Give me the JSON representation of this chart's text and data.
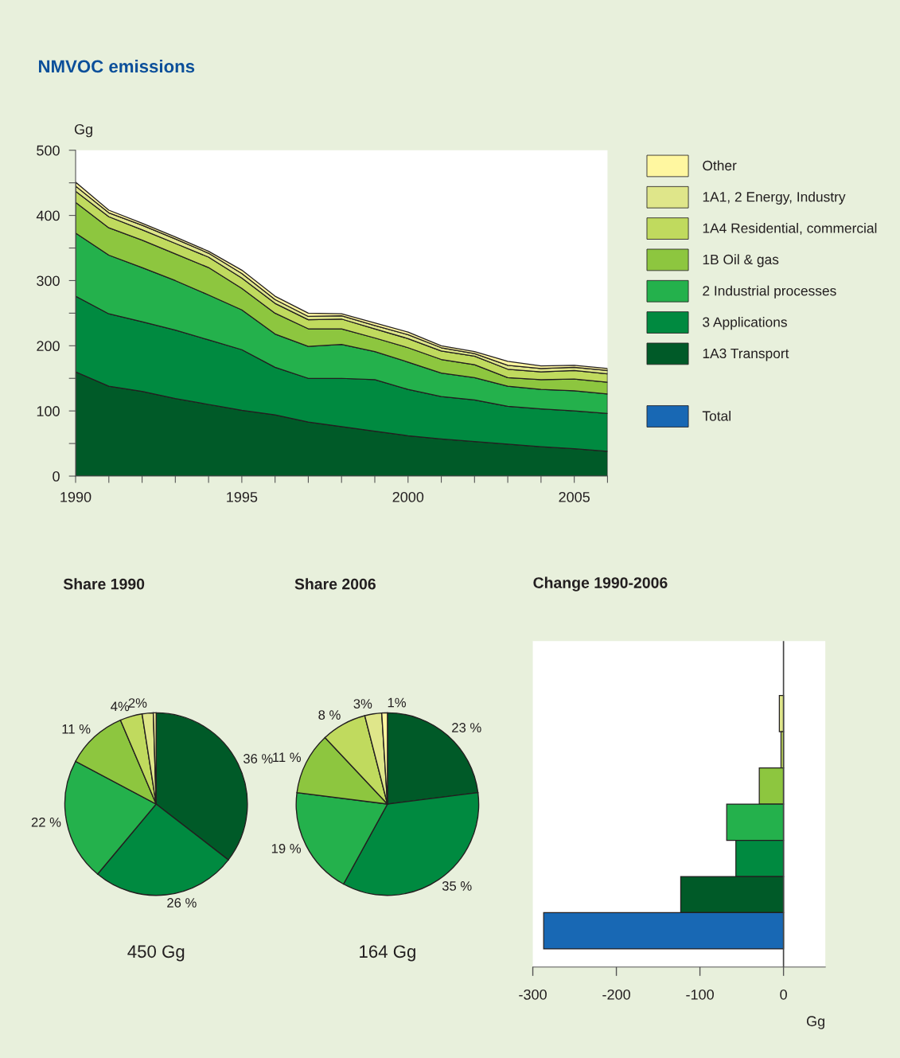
{
  "chart_data": [
    {
      "type": "area",
      "title": "NMVOC emissions",
      "ylabel": "Gg",
      "stacked": true,
      "legend": "right",
      "x": [
        1990,
        1991,
        1992,
        1993,
        1994,
        1995,
        1996,
        1997,
        1998,
        1999,
        2000,
        2001,
        2002,
        2003,
        2004,
        2005,
        2006
      ],
      "xlim": [
        1990,
        2006
      ],
      "xticks": [
        1990,
        {
          "value": 1991,
          "label": null
        },
        {
          "value": 1992,
          "label": null
        },
        {
          "value": 1993,
          "label": null
        },
        {
          "value": 1994,
          "label": null
        },
        1995,
        {
          "value": 1996,
          "label": null
        },
        {
          "value": 1997,
          "label": null
        },
        {
          "value": 1998,
          "label": null
        },
        {
          "value": 1999,
          "label": null
        },
        2000,
        {
          "value": 2001,
          "label": null
        },
        {
          "value": 2002,
          "label": null
        },
        {
          "value": 2003,
          "label": null
        },
        {
          "value": 2004,
          "label": null
        },
        2005,
        {
          "value": 2006,
          "label": null
        }
      ],
      "ylim": [
        0,
        500
      ],
      "yticks": [
        0,
        {
          "value": 50,
          "label": null
        },
        100,
        {
          "value": 150,
          "label": null
        },
        200,
        {
          "value": 250,
          "label": null
        },
        300,
        {
          "value": 350,
          "label": null
        },
        400,
        {
          "value": 450,
          "label": null
        },
        500
      ],
      "series": [
        {
          "name": "1A3 Transport",
          "color": "#005a28",
          "values": [
            160,
            138,
            130,
            119,
            110,
            101,
            94,
            83,
            76,
            69,
            62,
            57,
            53,
            49,
            45,
            42,
            38
          ]
        },
        {
          "name": "3 Applications",
          "color": "#008a40",
          "values": [
            116,
            111,
            107,
            105,
            99,
            93,
            73,
            67,
            74,
            79,
            71,
            65,
            64,
            58,
            58,
            58,
            58
          ]
        },
        {
          "name": "2 Industrial processes",
          "color": "#24b14c",
          "values": [
            97,
            90,
            83,
            76,
            69,
            61,
            51,
            49,
            52,
            43,
            42,
            36,
            34,
            31,
            30,
            31,
            30
          ]
        },
        {
          "name": "1B Oil & gas",
          "color": "#8dc63f",
          "values": [
            47,
            42,
            42,
            41,
            42,
            33,
            32,
            27,
            24,
            21,
            22,
            21,
            20,
            13,
            15,
            18,
            18
          ]
        },
        {
          "name": "1A4 Residential, commercial",
          "color": "#c0da5e",
          "values": [
            17,
            17,
            16,
            16,
            16,
            16,
            15,
            14,
            15,
            14,
            14,
            13,
            13,
            13,
            12,
            13,
            13
          ]
        },
        {
          "name": "1A1, 2 Energy, Industry",
          "color": "#dfe68a",
          "values": [
            8,
            6,
            7,
            7,
            6,
            7,
            6,
            5,
            5,
            5,
            6,
            5,
            4,
            6,
            5,
            5,
            5
          ]
        },
        {
          "name": "Other",
          "color": "#fff7a0",
          "values": [
            6,
            4,
            3,
            3,
            3,
            5,
            5,
            5,
            3,
            4,
            4,
            3,
            3,
            6,
            4,
            3,
            3
          ]
        }
      ]
    },
    {
      "type": "pie",
      "title": "Share 1990",
      "annotations": [
        "450 Gg"
      ],
      "categories": [
        null,
        null,
        null,
        null,
        null,
        null,
        null
      ],
      "values": [
        36,
        26,
        22,
        11,
        4,
        2,
        0.5
      ],
      "value_labels": [
        "36 %",
        "26 %",
        "22 %",
        "11 %",
        "4%",
        "2%",
        null
      ],
      "colors": [
        "#005a28",
        "#008a40",
        "#24b14c",
        "#8dc63f",
        "#c0da5e",
        "#dfe68a",
        "#fff7a0"
      ]
    },
    {
      "type": "pie",
      "title": "Share 2006",
      "annotations": [
        "164 Gg"
      ],
      "categories": [
        null,
        null,
        null,
        null,
        null,
        null,
        null
      ],
      "values": [
        23,
        35,
        19,
        11,
        8,
        3,
        1
      ],
      "value_labels": [
        "23 %",
        "35 %",
        "19 %",
        "11 %",
        "8 %",
        "3%",
        "1%"
      ],
      "colors": [
        "#005a28",
        "#008a40",
        "#24b14c",
        "#8dc63f",
        "#c0da5e",
        "#dfe68a",
        "#fff7a0"
      ]
    },
    {
      "type": "bar",
      "title": "Change 1990-2006",
      "xlabel": "Gg",
      "orientation": "horizontal",
      "stacked": true,
      "tick_labels": "x",
      "categories": [
        null,
        null,
        null,
        null,
        null,
        null,
        null,
        null
      ],
      "xlim": [
        -300,
        50
      ],
      "xticks": [
        -300,
        -200,
        -100,
        0
      ],
      "ref_lines": [
        {
          "axis": "x",
          "value": 0,
          "color": "#444444"
        }
      ],
      "series": [
        {
          "colors": [
            "#fff7a0",
            "#dfe68a",
            "#c0da5e",
            "#8dc63f",
            "#24b14c",
            "#008a40",
            "#005a28",
            "#1868b4"
          ],
          "values": [
            null,
            -5,
            -3,
            -29,
            -68,
            -57,
            -123,
            null
          ]
        },
        {
          "name": "Total",
          "color": "#1868b4",
          "values": [
            null,
            null,
            null,
            null,
            null,
            null,
            null,
            -287
          ]
        }
      ]
    }
  ]
}
